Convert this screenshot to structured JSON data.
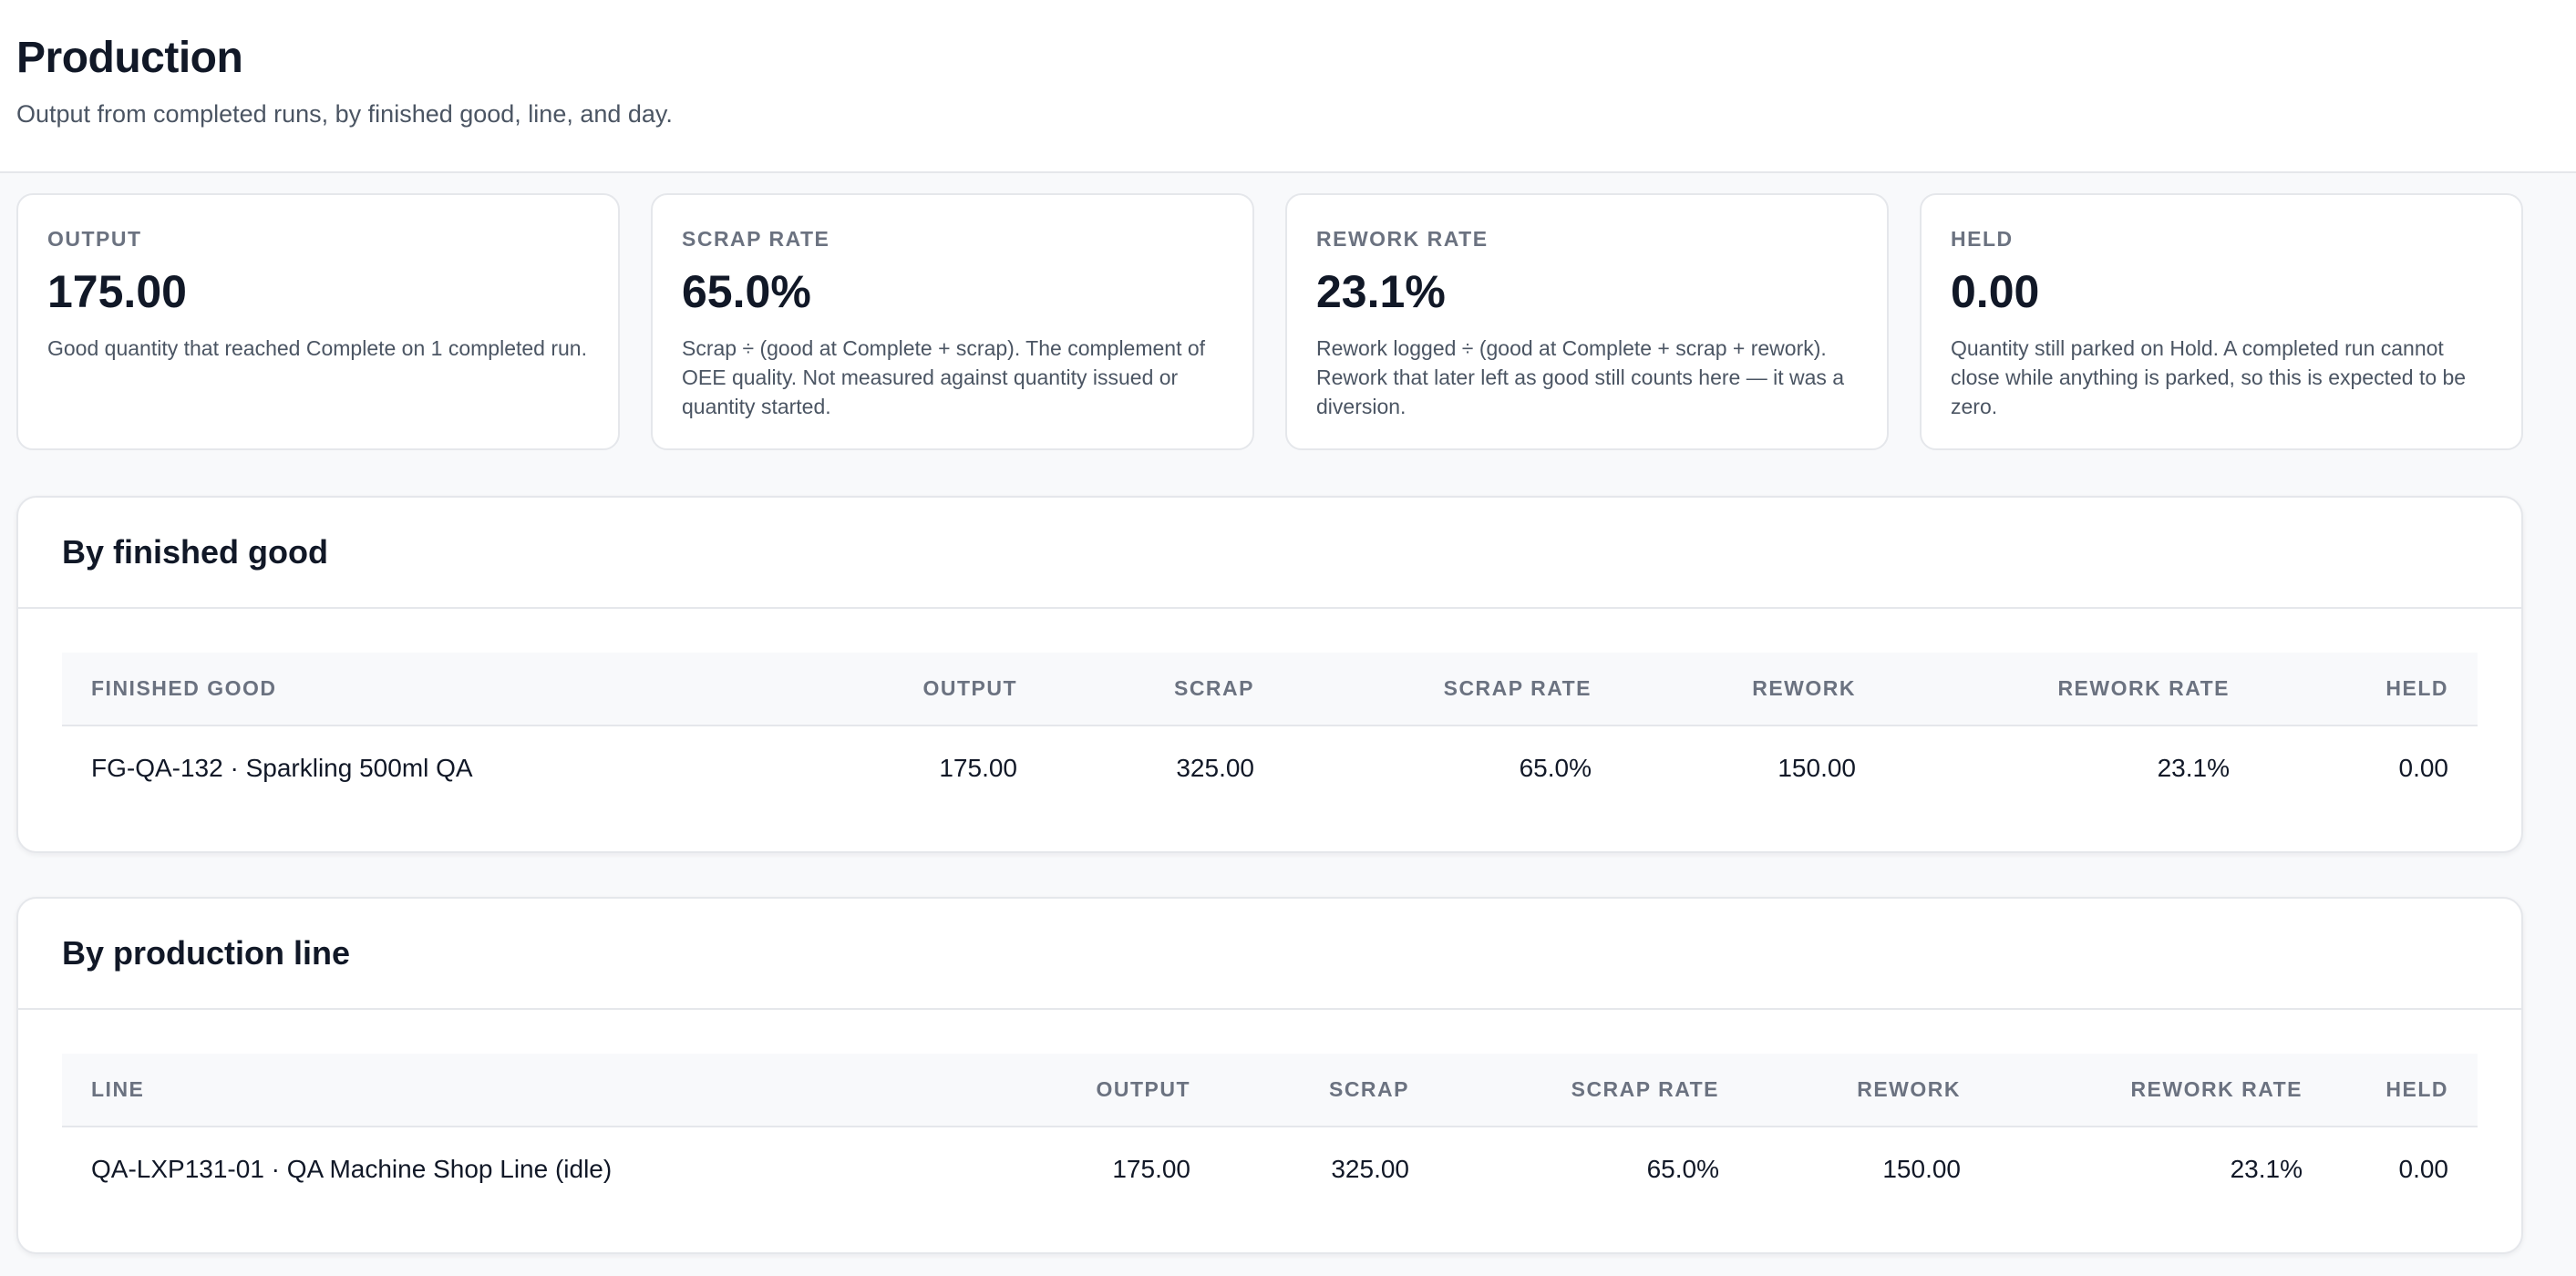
{
  "header": {
    "title": "Production",
    "subtitle": "Output from completed runs, by finished good, line, and day."
  },
  "kpis": [
    {
      "label": "OUTPUT",
      "value": "175.00",
      "description": "Good quantity that reached Complete on 1 completed run."
    },
    {
      "label": "SCRAP RATE",
      "value": "65.0%",
      "description": "Scrap ÷ (good at Complete + scrap). The complement of OEE quality. Not measured against quantity issued or quantity started."
    },
    {
      "label": "REWORK RATE",
      "value": "23.1%",
      "description": "Rework logged ÷ (good at Complete + scrap + rework). Rework that later left as good still counts here — it was a diversion."
    },
    {
      "label": "HELD",
      "value": "0.00",
      "description": "Quantity still parked on Hold. A completed run cannot close while anything is parked, so this is expected to be zero."
    }
  ],
  "by_finished_good": {
    "title": "By finished good",
    "columns": [
      "FINISHED GOOD",
      "OUTPUT",
      "SCRAP",
      "SCRAP RATE",
      "REWORK",
      "REWORK RATE",
      "HELD"
    ],
    "rows": [
      [
        "FG-QA-132 · Sparkling 500ml QA",
        "175.00",
        "325.00",
        "65.0%",
        "150.00",
        "23.1%",
        "0.00"
      ]
    ]
  },
  "by_production_line": {
    "title": "By production line",
    "columns": [
      "LINE",
      "OUTPUT",
      "SCRAP",
      "SCRAP RATE",
      "REWORK",
      "REWORK RATE",
      "HELD"
    ],
    "rows": [
      [
        "QA-LXP131-01 · QA Machine Shop Line (idle)",
        "175.00",
        "325.00",
        "65.0%",
        "150.00",
        "23.1%",
        "0.00"
      ]
    ]
  }
}
